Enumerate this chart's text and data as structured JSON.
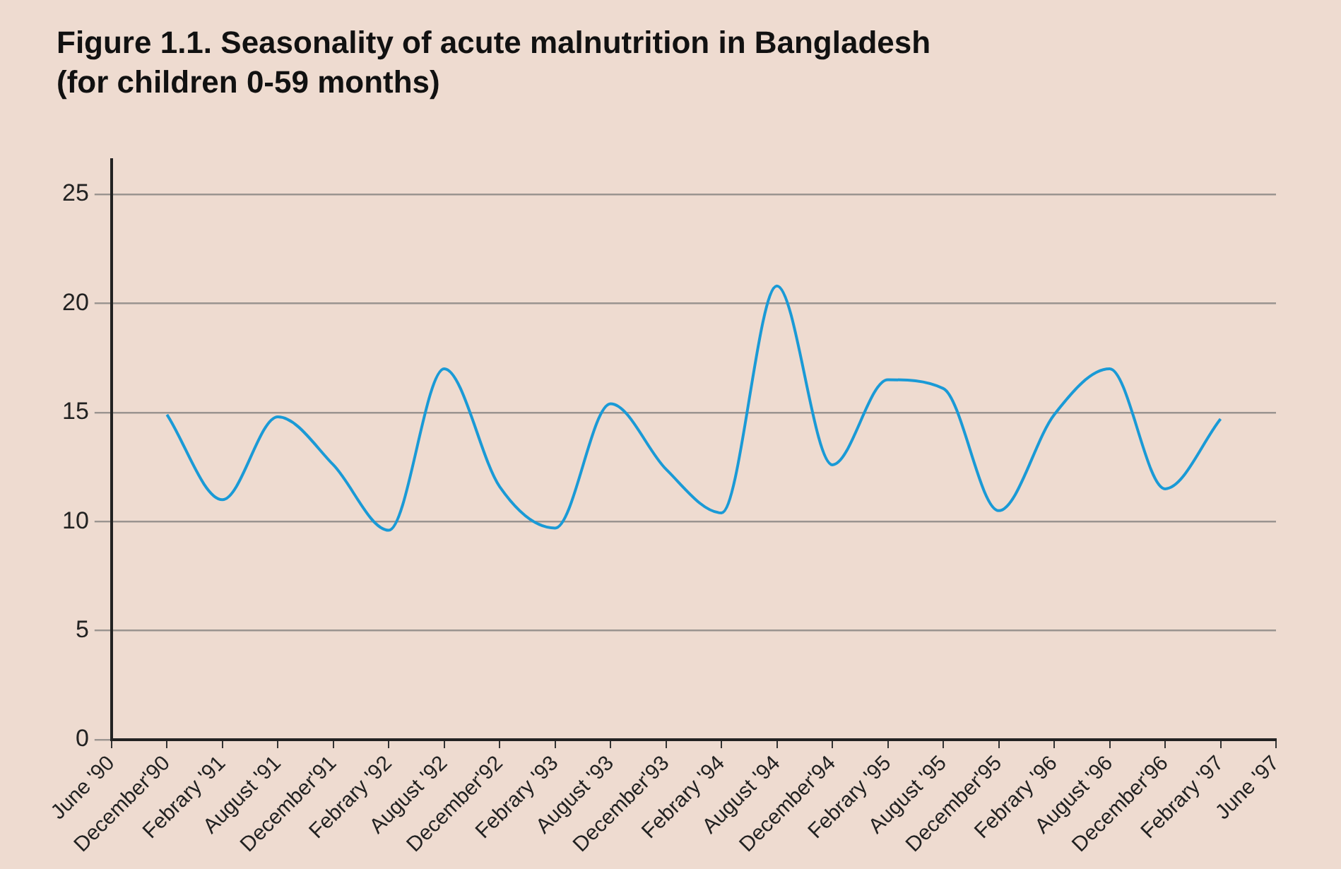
{
  "chart_data": {
    "type": "line",
    "title": "Figure 1.1. Seasonality of acute malnutrition in Bangladesh",
    "subtitle": "(for children 0-59 months)",
    "categories": [
      "June '90",
      "December'90",
      "Febrary '91",
      "August '91",
      "December'91",
      "Febrary '92",
      "August '92",
      "December'92",
      "Febrary '93",
      "August '93",
      "December'93",
      "Febrary '94",
      "August '94",
      "December'94",
      "Febrary '95",
      "August '95",
      "December'95",
      "Febrary '96",
      "August '96",
      "December'96",
      "Febrary '97",
      "June '97"
    ],
    "series": [
      {
        "color": "#1a9ad6",
        "values": [
          null,
          14.9,
          11.0,
          14.8,
          12.6,
          9.6,
          17.0,
          11.6,
          9.7,
          15.4,
          12.4,
          10.4,
          20.8,
          12.6,
          16.5,
          16.1,
          10.5,
          14.9,
          17.0,
          11.5,
          14.7,
          null
        ]
      }
    ],
    "ylim": [
      0,
      26.6
    ],
    "yticks": [
      0,
      5,
      10,
      15,
      20,
      25
    ],
    "grid": "y",
    "legend": false,
    "marker": "none",
    "line_style": "solid"
  }
}
